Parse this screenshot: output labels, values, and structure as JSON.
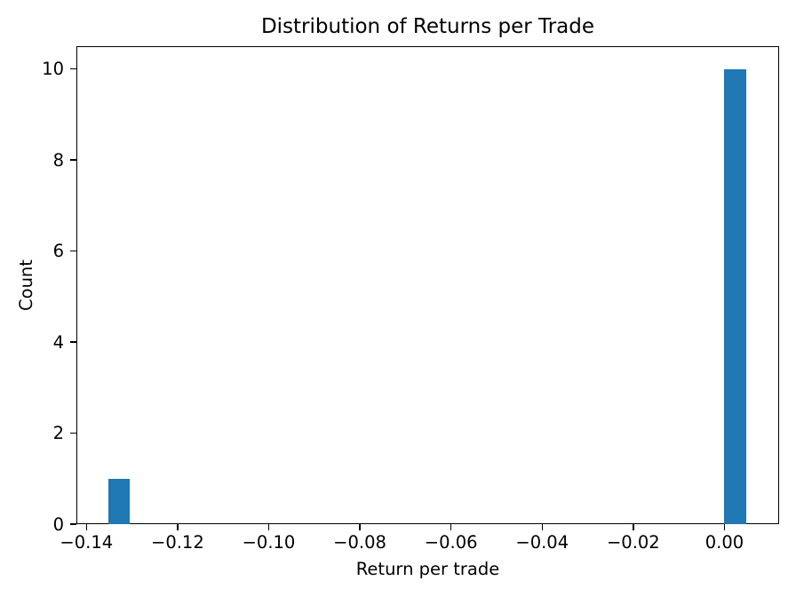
{
  "chart_data": {
    "type": "histogram",
    "title": "Distribution of Returns per Trade",
    "xlabel": "Return per trade",
    "ylabel": "Count",
    "xlim": [
      -0.1422,
      0.012
    ],
    "ylim": [
      0,
      10.5
    ],
    "grid": false,
    "legend": false,
    "colors": {
      "bar": "#1f77b4",
      "text": "#000000",
      "spine": "#000000",
      "background": "#ffffff"
    },
    "xticks": {
      "values": [
        -0.14,
        -0.12,
        -0.1,
        -0.08,
        -0.06,
        -0.04,
        -0.02,
        0.0
      ],
      "labels": [
        "−0.14",
        "−0.12",
        "−0.10",
        "−0.08",
        "−0.06",
        "−0.04",
        "−0.02",
        "0.00"
      ]
    },
    "yticks": {
      "values": [
        0,
        2,
        4,
        6,
        8,
        10
      ],
      "labels": [
        "0",
        "2",
        "4",
        "6",
        "8",
        "10"
      ]
    },
    "bars": [
      {
        "x0": -0.1352,
        "x1": -0.1305,
        "count": 1
      },
      {
        "x0": 0.0,
        "x1": 0.0048,
        "count": 10
      }
    ]
  }
}
